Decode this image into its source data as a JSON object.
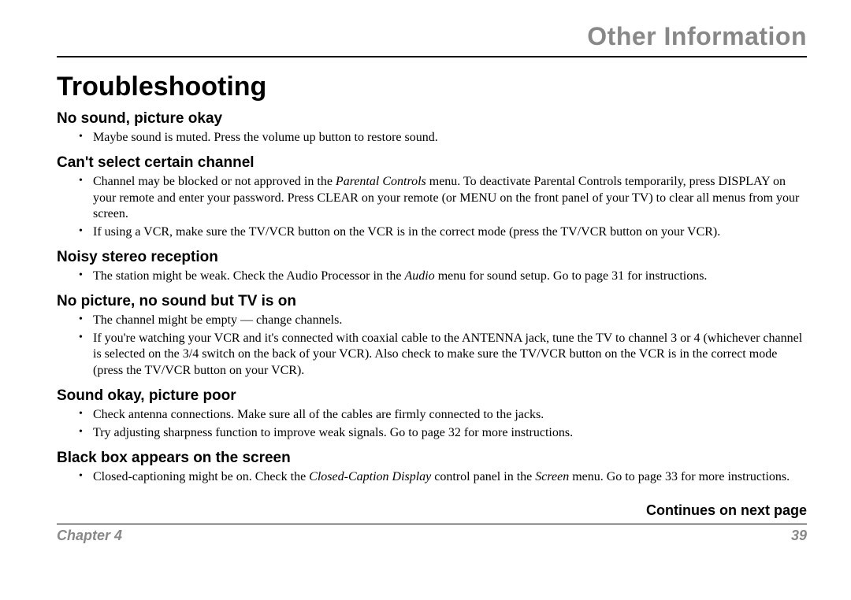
{
  "header": {
    "title": "Other Information"
  },
  "section_title": "Troubleshooting",
  "problems": [
    {
      "heading": "No sound, picture okay",
      "items": [
        {
          "segments": [
            {
              "text": "Maybe sound is muted.  Press the volume up button to restore sound."
            }
          ]
        }
      ]
    },
    {
      "heading": "Can't select certain channel",
      "items": [
        {
          "segments": [
            {
              "text": "Channel may be blocked or not approved in the "
            },
            {
              "text": "Parental Controls",
              "italic": true
            },
            {
              "text": " menu. To deactivate Parental Controls temporarily, press DISPLAY on your remote and enter your password. Press CLEAR on your remote (or MENU on the front panel of your TV) to clear all menus from your screen."
            }
          ]
        },
        {
          "segments": [
            {
              "text": "If using a VCR, make sure the TV/VCR button on the VCR is in the correct mode (press the TV/VCR button on your VCR)."
            }
          ]
        }
      ]
    },
    {
      "heading": "Noisy stereo reception",
      "items": [
        {
          "segments": [
            {
              "text": "The station might be weak.  Check the Audio Processor in the "
            },
            {
              "text": "Audio",
              "italic": true
            },
            {
              "text": " menu for sound setup. Go to page 31 for instructions."
            }
          ]
        }
      ]
    },
    {
      "heading": "No picture, no sound but TV is on",
      "items": [
        {
          "segments": [
            {
              "text": "The channel might be empty — change channels."
            }
          ]
        },
        {
          "segments": [
            {
              "text": "If you're watching your VCR and it's connected with coaxial cable to the ANTENNA jack, tune the TV to channel 3 or 4 (whichever channel is selected on the 3/4 switch on the back of your VCR).  Also check to make sure the TV/VCR button on the VCR is in the correct mode (press the TV/VCR button on your VCR)."
            }
          ]
        }
      ]
    },
    {
      "heading": "Sound okay, picture poor",
      "items": [
        {
          "segments": [
            {
              "text": "Check antenna connections. Make sure all of the cables are firmly connected to the jacks."
            }
          ]
        },
        {
          "segments": [
            {
              "text": "Try adjusting sharpness function to improve weak signals. Go to page 32 for more instructions."
            }
          ]
        }
      ]
    },
    {
      "heading": "Black box appears on the screen",
      "items": [
        {
          "segments": [
            {
              "text": "Closed-captioning might be on. Check the "
            },
            {
              "text": "Closed-Caption Display",
              "italic": true
            },
            {
              "text": " control panel in the "
            },
            {
              "text": "Screen",
              "italic": true
            },
            {
              "text": " menu. Go to page 33 for more instructions."
            }
          ]
        }
      ]
    }
  ],
  "continues": "Continues on next page",
  "footer": {
    "chapter": "Chapter 4",
    "page": "39"
  },
  "colors": {
    "header_gray": "#888888",
    "text": "#000000",
    "bg": "#ffffff"
  },
  "typography": {
    "header_fontsize": 32,
    "section_title_fontsize": 34,
    "subhead_fontsize": 19,
    "body_fontsize": 16,
    "footer_fontsize": 18
  }
}
